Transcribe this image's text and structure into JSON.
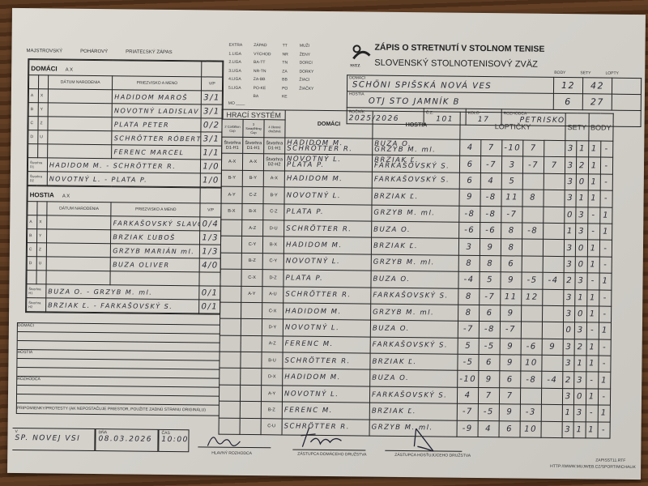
{
  "form": {
    "match_types": [
      "MAJSTROVSKÝ",
      "POHÁROVÝ",
      "PRIATEĽSKÝ ZÁPAS"
    ],
    "leagues": [
      [
        "EXTRA",
        "1.LIGA",
        "2.LIGA",
        "3.LIGA",
        "4.LIGA",
        "5.LIGA"
      ],
      [
        "ZÁPAD",
        "VÝCHOD",
        "BA-TT",
        "NR-TN",
        "ZA-BB",
        "PO-KE",
        "BA"
      ],
      [
        "TT",
        "NR",
        "TN",
        "ZA",
        "BB",
        "PO",
        "KE"
      ],
      [
        "MUŽI",
        "ŽENY",
        "DORCI",
        "DORKY",
        "ŽIACI",
        "ŽIAČKY"
      ]
    ],
    "mo_label": "MO",
    "title": "ZÁPIS O STRETNUTÍ V STOLNOM TENISE",
    "federation": "SLOVENSKÝ STOLNOTENISOVÝ ZVÄZ",
    "logo_text": "SSTZ",
    "score_headers": [
      "BODY",
      "SETY",
      "LOPTY"
    ],
    "home_label": "DOMÁCI",
    "home_team": "SCHÖNI SPIŠSKÁ NOVÁ VES",
    "home_points": "12",
    "home_sets": "42",
    "away_label": "HOSTIA",
    "away_team": "OTJ STO JAMNÍK B",
    "away_points": "6",
    "away_sets": "27",
    "season_label": "ROČNÍK",
    "season": "2025/2026",
    "cz_label": "Č.Z.",
    "cz": "101",
    "round_label": "KOLO",
    "round": "17",
    "referee_label": "ROZHODCA",
    "referee": "PETRISKO"
  },
  "home": {
    "title": "DOMÁCI",
    "ax": "A X",
    "col_dob": "DÁTUM NARODENIA",
    "col_name": "PRIEZVISKO A MENO",
    "col_wl": "V/P",
    "players": [
      {
        "l1": "A",
        "l2": "X",
        "name": "HADIDOM MAROŠ",
        "wl": "3/1"
      },
      {
        "l1": "B",
        "l2": "Y",
        "name": "NOVOTNÝ LADISLAV",
        "wl": "3/1"
      },
      {
        "l1": "C",
        "l2": "Z",
        "name": "PLATA PETER",
        "wl": "0/2"
      },
      {
        "l1": "D",
        "l2": "U",
        "name": "SCHRÖTTER RÓBERT",
        "wl": "3/1"
      },
      {
        "l1": "",
        "l2": "",
        "name": "FERENC MARCEL",
        "wl": "1/1"
      }
    ],
    "doubles": [
      {
        "label": "Štvorhra D1",
        "name": "HADIDOM M. - SCHRÖTTER R.",
        "wl": "1/0"
      },
      {
        "label": "Štvorhra D2",
        "name": "NOVOTNÝ L. - PLATA P.",
        "wl": "1/0"
      }
    ]
  },
  "away": {
    "title": "HOSTIA",
    "ax": "A X",
    "col_dob": "DÁTUM NARODENIA",
    "col_name": "PRIEZVISKO A MENO",
    "col_wl": "V/P",
    "players": [
      {
        "l1": "A",
        "l2": "X",
        "name": "FARKAŠOVSKÝ SLAVOMÍR",
        "wl": "0/4"
      },
      {
        "l1": "B",
        "l2": "Y",
        "name": "BRZIAK ĽUBOŠ",
        "wl": "1/3"
      },
      {
        "l1": "C",
        "l2": "Z",
        "name": "GRZYB MARIÁN ml.",
        "wl": "1/3"
      },
      {
        "l1": "D",
        "l2": "U",
        "name": "BUZA OLIVER",
        "wl": "4/0"
      },
      {
        "l1": "",
        "l2": "",
        "name": "",
        "wl": ""
      }
    ],
    "doubles": [
      {
        "label": "Štvorhra H1",
        "name": "BUZA O. - GRZYB M. ml.",
        "wl": "0/1"
      },
      {
        "label": "Štvorhra H2",
        "name": "BRZIAK Ľ. - FARKAŠOVSKÝ S.",
        "wl": "0/1"
      }
    ]
  },
  "notes": {
    "home": "DOMÁCI",
    "away": "HOSTIA",
    "referee": "ROZHODCA",
    "protests": "PRIPOMIENKY/PROTESTY (AK NEPOSTAČUJE PRIESTOR, POUŽITE ZADNÚ STRANU ORIGINÁLU)"
  },
  "footer": {
    "place_label": "V",
    "place": "SP. NOVEJ VSI",
    "date_label": "DŇA",
    "date": "08.03.2026",
    "time_label": "ČAS",
    "time": "10:00",
    "chief_referee": "HLAVNÝ ROZHODCA",
    "home_rep": "ZÁSTUPCA DOMÁCEHO DRUŽSTVA",
    "away_rep": "ZÁSTUPCA HOSŤUJÚCEHO DRUŽSTVA",
    "form_code": "ZAPISST11.RTF",
    "url": "HTTP://WWW.MUJWEB.CZ/SPORT/MICHALIK"
  },
  "matches_header": {
    "system": "HRACÍ SYSTÉM",
    "sys_cols": [
      "2 Corbillon Cup",
      "3 Swaythling Cup",
      "4 členné družstvá"
    ],
    "home": "DOMÁCI",
    "away": "HOSTIA",
    "balls": "LOPTIČKY",
    "sets": "SETY",
    "points": "BODY"
  },
  "matches": [
    {
      "sys": [
        "Štvorhra D1-H1",
        "Štvorhra D1-H1",
        "Štvorhra D1-H1"
      ],
      "home": [
        "HADIDOM M.",
        "SCHRÖTTER R."
      ],
      "away": [
        "BUZA O.",
        "GRZYB M. ml."
      ],
      "balls": [
        "4",
        "7",
        "-10",
        "7",
        ""
      ],
      "sets": [
        "3",
        "1"
      ],
      "points": [
        "1",
        "-"
      ]
    },
    {
      "sys": [
        "A-X",
        "A-X",
        "Štvorhra D2-H2"
      ],
      "home": [
        "NOVOTNÝ L.",
        "PLATA P."
      ],
      "away": [
        "BRZIAK Ľ.",
        "FARKAŠOVSKÝ S."
      ],
      "balls": [
        "6",
        "-7",
        "3",
        "-7",
        "7"
      ],
      "sets": [
        "3",
        "2"
      ],
      "points": [
        "1",
        "-"
      ]
    },
    {
      "sys": [
        "B-Y",
        "B-Y",
        "A-X"
      ],
      "home": [
        "HADIDOM M."
      ],
      "away": [
        "FARKAŠOVSKÝ S."
      ],
      "balls": [
        "6",
        "4",
        "5",
        "",
        ""
      ],
      "sets": [
        "3",
        "0"
      ],
      "points": [
        "1",
        "-"
      ]
    },
    {
      "sys": [
        "A-Y",
        "C-Z",
        "B-Y"
      ],
      "home": [
        "NOVOTNÝ L."
      ],
      "away": [
        "BRZIAK Ľ."
      ],
      "balls": [
        "9",
        "-8",
        "11",
        "8",
        ""
      ],
      "sets": [
        "3",
        "1"
      ],
      "points": [
        "1",
        "-"
      ]
    },
    {
      "sys": [
        "B-X",
        "B-X",
        "C-Z"
      ],
      "home": [
        "PLATA P."
      ],
      "away": [
        "GRZYB M. ml."
      ],
      "balls": [
        "-8",
        "-8",
        "-7",
        "",
        ""
      ],
      "sets": [
        "0",
        "3"
      ],
      "points": [
        "-",
        "1"
      ]
    },
    {
      "sys": [
        "",
        "A-Z",
        "D-U"
      ],
      "home": [
        "SCHRÖTTER R."
      ],
      "away": [
        "BUZA O."
      ],
      "balls": [
        "-6",
        "-6",
        "8",
        "-8",
        ""
      ],
      "sets": [
        "1",
        "3"
      ],
      "points": [
        "-",
        "1"
      ]
    },
    {
      "sys": [
        "",
        "C-Y",
        "B-X"
      ],
      "home": [
        "HADIDOM M."
      ],
      "away": [
        "BRZIAK Ľ."
      ],
      "balls": [
        "3",
        "9",
        "8",
        "",
        ""
      ],
      "sets": [
        "3",
        "0"
      ],
      "points": [
        "1",
        "-"
      ]
    },
    {
      "sys": [
        "",
        "B-Z",
        "C-Y"
      ],
      "home": [
        "NOVOTNÝ L."
      ],
      "away": [
        "GRZYB M. ml."
      ],
      "balls": [
        "8",
        "8",
        "6",
        "",
        ""
      ],
      "sets": [
        "3",
        "0"
      ],
      "points": [
        "1",
        "-"
      ]
    },
    {
      "sys": [
        "",
        "C-X",
        "D-Z"
      ],
      "home": [
        "PLATA P."
      ],
      "away": [
        "BUZA O."
      ],
      "balls": [
        "-4",
        "5",
        "9",
        "-5",
        "-4"
      ],
      "sets": [
        "2",
        "3"
      ],
      "points": [
        "-",
        "1"
      ]
    },
    {
      "sys": [
        "",
        "A-Y",
        "A-U"
      ],
      "home": [
        "SCHRÖTTER R."
      ],
      "away": [
        "FARKAŠOVSKÝ S."
      ],
      "balls": [
        "8",
        "-7",
        "11",
        "12",
        ""
      ],
      "sets": [
        "3",
        "1"
      ],
      "points": [
        "1",
        "-"
      ]
    },
    {
      "sys": [
        "",
        "",
        "C-X"
      ],
      "home": [
        "HADIDOM M."
      ],
      "away": [
        "GRZYB M. ml."
      ],
      "balls": [
        "8",
        "6",
        "9",
        "",
        ""
      ],
      "sets": [
        "3",
        "0"
      ],
      "points": [
        "1",
        "-"
      ]
    },
    {
      "sys": [
        "",
        "",
        "D-Y"
      ],
      "home": [
        "NOVOTNÝ L."
      ],
      "away": [
        "BUZA O."
      ],
      "balls": [
        "-7",
        "-8",
        "-7",
        "",
        ""
      ],
      "sets": [
        "0",
        "3"
      ],
      "points": [
        "-",
        "1"
      ]
    },
    {
      "sys": [
        "",
        "",
        "A-Z"
      ],
      "home": [
        "FERENC M."
      ],
      "away": [
        "FARKAŠOVSKÝ S."
      ],
      "balls": [
        "5",
        "-5",
        "9",
        "-6",
        "9"
      ],
      "sets": [
        "3",
        "2"
      ],
      "points": [
        "1",
        "-"
      ]
    },
    {
      "sys": [
        "",
        "",
        "B-U"
      ],
      "home": [
        "SCHRÖTTER R."
      ],
      "away": [
        "BRZIAK Ľ."
      ],
      "balls": [
        "-5",
        "6",
        "9",
        "10",
        ""
      ],
      "sets": [
        "3",
        "1"
      ],
      "points": [
        "1",
        "-"
      ]
    },
    {
      "sys": [
        "",
        "",
        "D-X"
      ],
      "home": [
        "HADIDOM M."
      ],
      "away": [
        "BUZA O."
      ],
      "balls": [
        "-10",
        "9",
        "6",
        "-8",
        "-4"
      ],
      "sets": [
        "2",
        "3"
      ],
      "points": [
        "-",
        "1"
      ]
    },
    {
      "sys": [
        "",
        "",
        "A-Y"
      ],
      "home": [
        "NOVOTNÝ L."
      ],
      "away": [
        "FARKAŠOVSKÝ S."
      ],
      "balls": [
        "4",
        "7",
        "7",
        "",
        ""
      ],
      "sets": [
        "3",
        "0"
      ],
      "points": [
        "1",
        "-"
      ]
    },
    {
      "sys": [
        "",
        "",
        "B-Z"
      ],
      "home": [
        "FERENC M."
      ],
      "away": [
        "BRZIAK Ľ."
      ],
      "balls": [
        "-7",
        "-5",
        "9",
        "-3",
        ""
      ],
      "sets": [
        "1",
        "3"
      ],
      "points": [
        "-",
        "1"
      ]
    },
    {
      "sys": [
        "",
        "",
        "C-U"
      ],
      "home": [
        "SCHRÖTTER R."
      ],
      "away": [
        "GRZYB M. ml."
      ],
      "balls": [
        "-9",
        "4",
        "6",
        "10",
        ""
      ],
      "sets": [
        "3",
        "1"
      ],
      "points": [
        "1",
        "-"
      ]
    }
  ]
}
